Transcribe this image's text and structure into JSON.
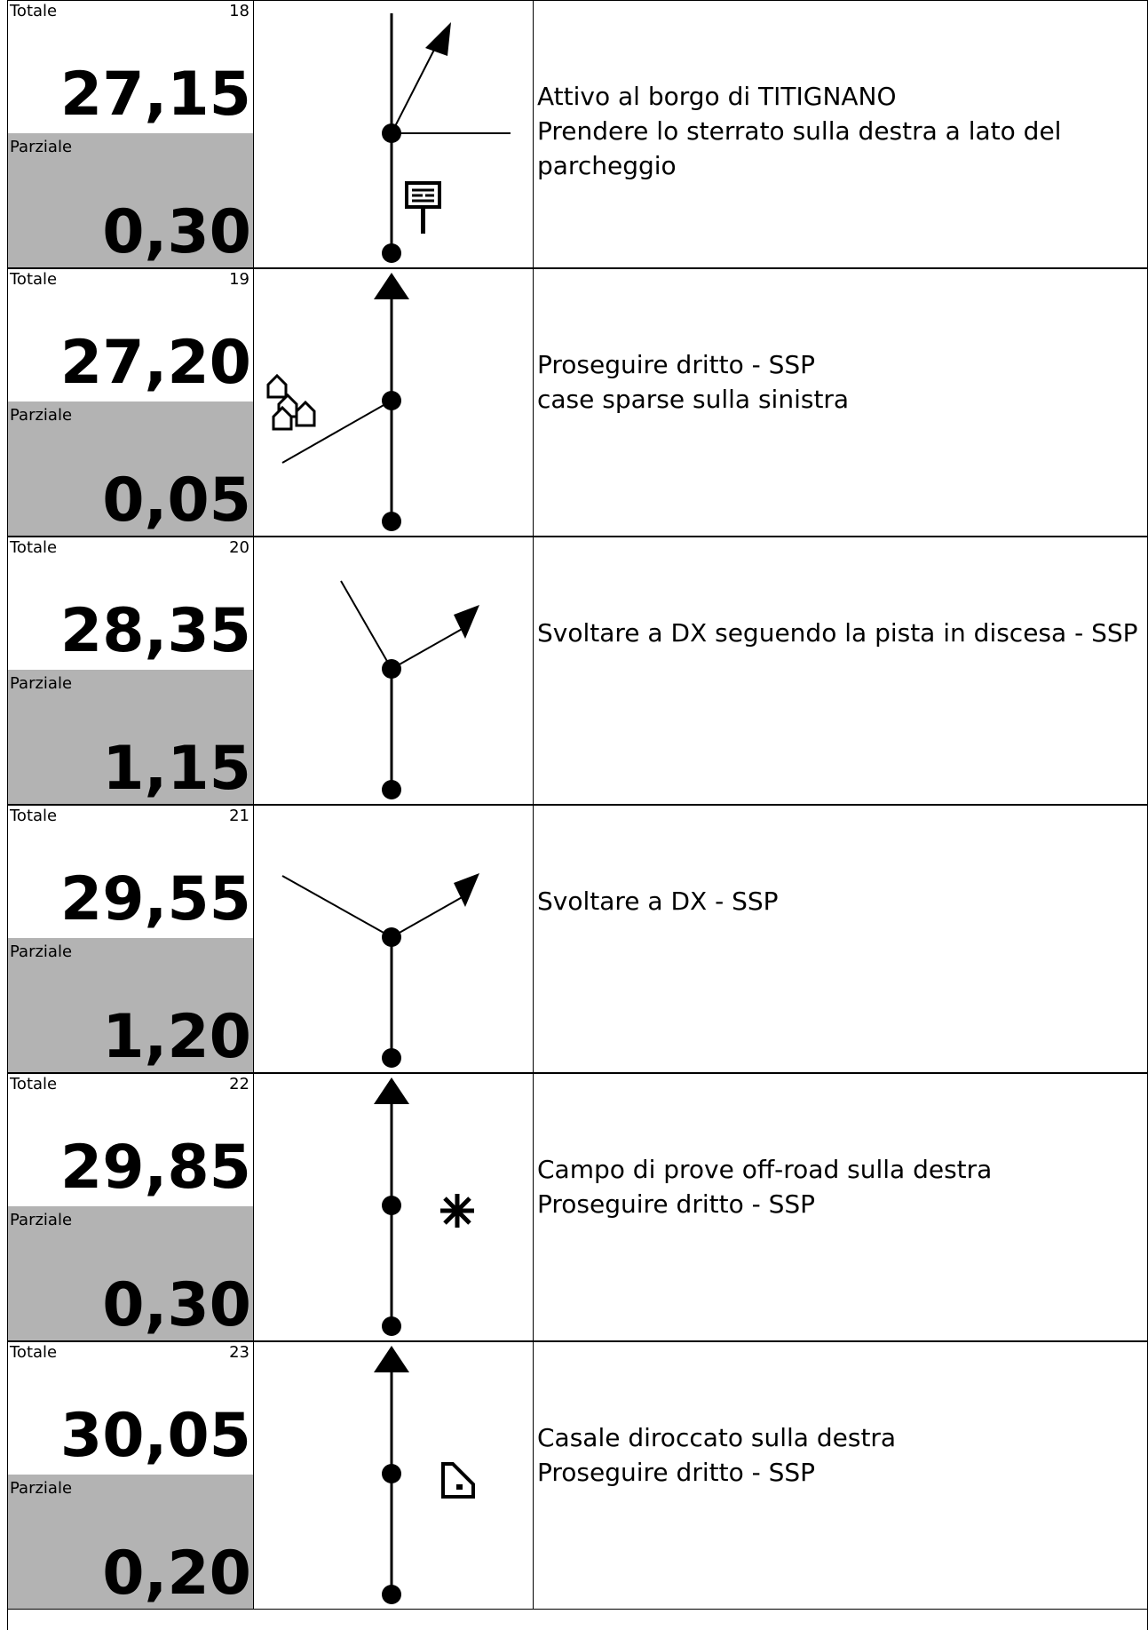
{
  "labels": {
    "totale": "Totale",
    "parziale": "Parziale"
  },
  "rows": [
    {
      "num": "18",
      "totale": "27,15",
      "parziale": "0,30",
      "text": [
        "Attivo al borgo di TITIGNANO",
        "Prendere lo sterrato sulla destra a lato del",
        "parcheggio"
      ],
      "diagram": "fork-right-with-signpost",
      "icon": "signpost-icon"
    },
    {
      "num": "19",
      "totale": "27,20",
      "parziale": "0,05",
      "text": [
        "Proseguire dritto - SSP",
        "case sparse sulla sinistra"
      ],
      "diagram": "straight-with-left-branch",
      "icon": "houses-icon"
    },
    {
      "num": "20",
      "totale": "28,35",
      "parziale": "1,15",
      "text": [
        "Svoltare a DX seguendo la pista in discesa - SSP"
      ],
      "diagram": "right-turn-fork",
      "icon": ""
    },
    {
      "num": "21",
      "totale": "29,55",
      "parziale": "1,20",
      "text": [
        "Svoltare a DX - SSP"
      ],
      "diagram": "right-turn-y",
      "icon": ""
    },
    {
      "num": "22",
      "totale": "29,85",
      "parziale": "0,30",
      "text": [
        "Campo di prove off-road sulla destra",
        "Proseguire dritto - SSP"
      ],
      "diagram": "straight",
      "icon": "asterisk-icon"
    },
    {
      "num": "23",
      "totale": "30,05",
      "parziale": "0,20",
      "text": [
        "Casale diroccato sulla destra",
        "Proseguire dritto - SSP"
      ],
      "diagram": "straight",
      "icon": "ruined-house-icon"
    }
  ]
}
